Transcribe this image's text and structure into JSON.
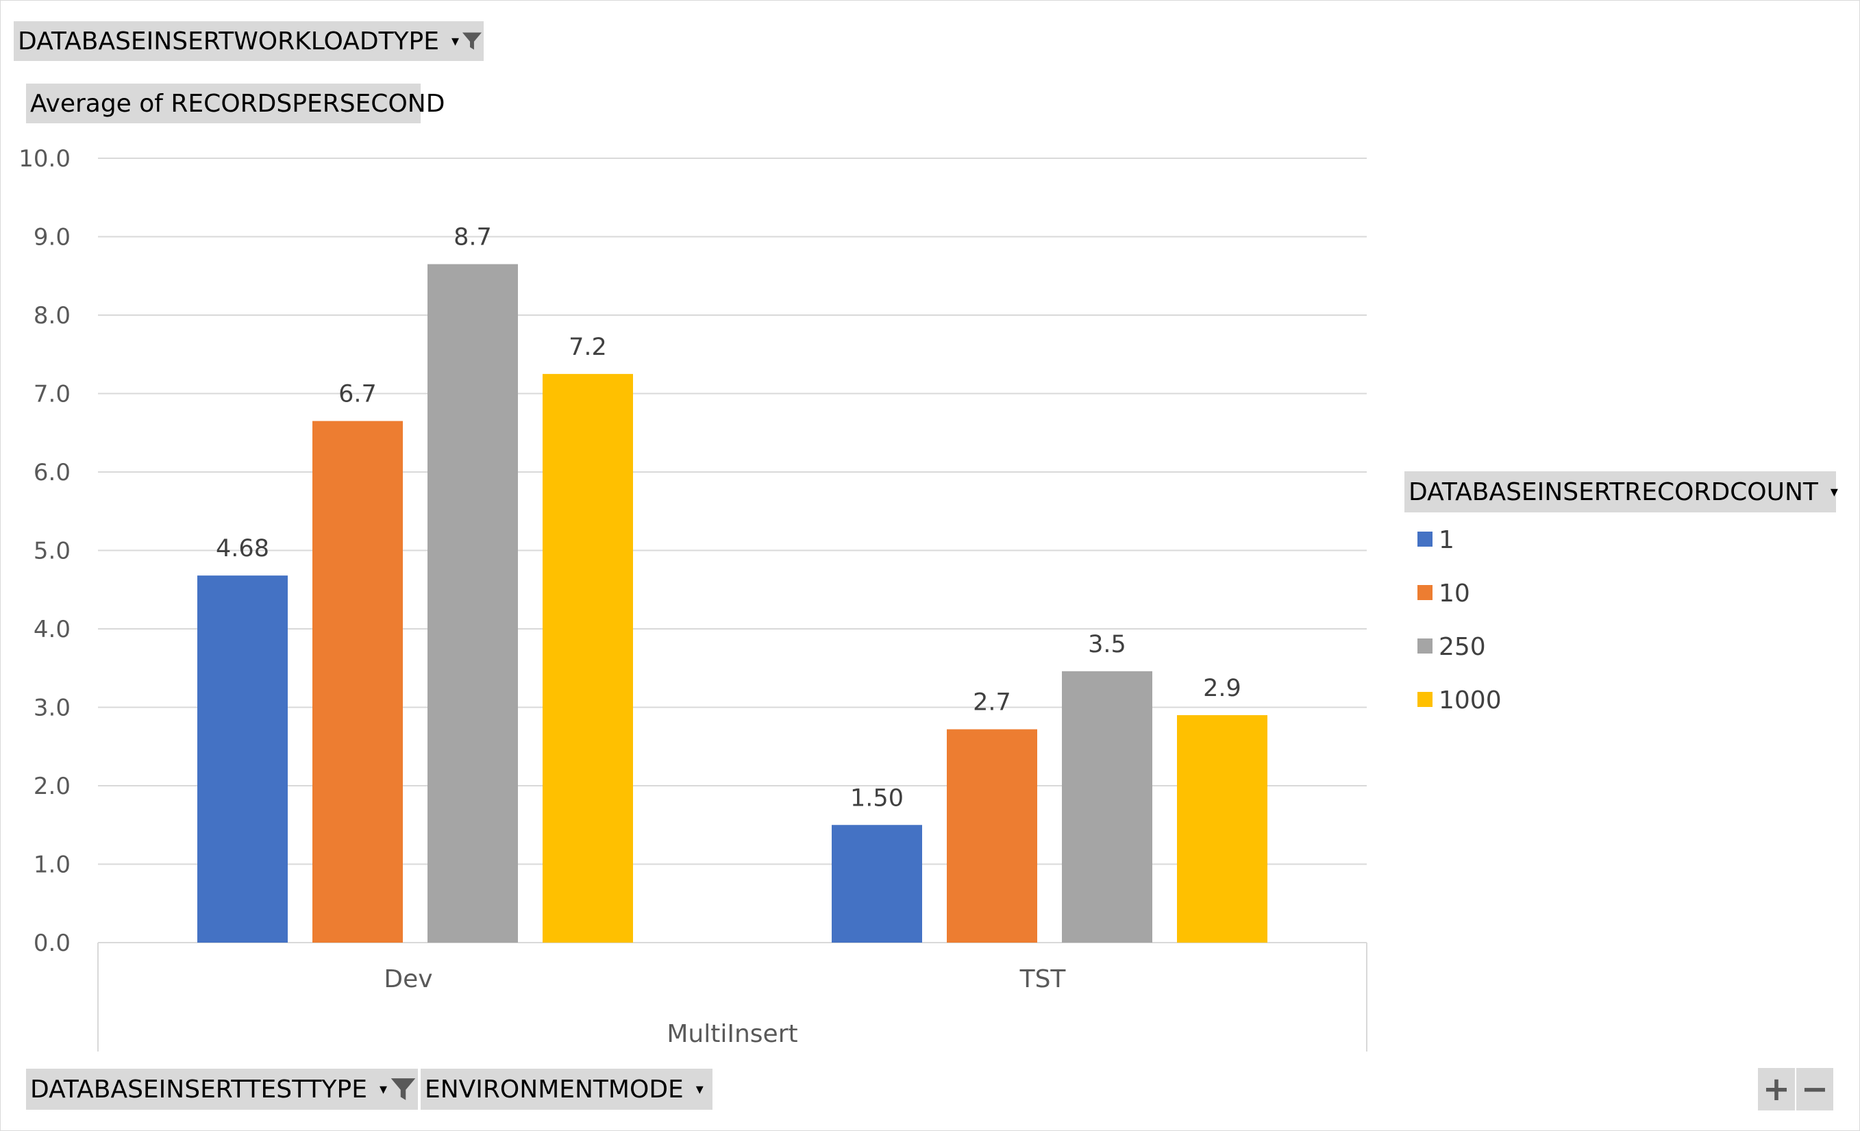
{
  "filters": {
    "top": {
      "label": "DATABASEINSERTWORKLOADTYPE",
      "dropdown": "▾"
    },
    "value_field": {
      "label": "Average  of RECORDSPERSECOND"
    },
    "legend_field": {
      "label": "DATABASEINSERTRECORDCOUNT",
      "dropdown": "▾"
    },
    "axis_field_1": {
      "label": "DATABASEINSERTTESTTYPE",
      "dropdown": "▾"
    },
    "axis_field_2": {
      "label": "ENVIRONMENTMODE",
      "dropdown": "▾"
    }
  },
  "zoom": {
    "plus": "+",
    "minus": "−"
  },
  "chart_data": {
    "type": "bar",
    "group_label": "MultiInsert",
    "categories": [
      "Dev",
      "TST"
    ],
    "series": [
      {
        "name": "1",
        "color": "#4472c4",
        "values": [
          4.68,
          1.5
        ],
        "labels": [
          "4.68",
          "1.50"
        ]
      },
      {
        "name": "10",
        "color": "#ed7d31",
        "values": [
          6.65,
          2.72
        ],
        "labels": [
          "6.7",
          "2.7"
        ]
      },
      {
        "name": "250",
        "color": "#a5a5a5",
        "values": [
          8.65,
          3.46
        ],
        "labels": [
          "8.7",
          "3.5"
        ]
      },
      {
        "name": "1000",
        "color": "#ffc000",
        "values": [
          7.25,
          2.9
        ],
        "labels": [
          "7.2",
          "2.9"
        ]
      }
    ],
    "ylim": [
      0,
      10
    ],
    "yticks": [
      "0.0",
      "1.0",
      "2.0",
      "3.0",
      "4.0",
      "5.0",
      "6.0",
      "7.0",
      "8.0",
      "9.0",
      "10.0"
    ],
    "grid": true,
    "legend_position": "right"
  }
}
